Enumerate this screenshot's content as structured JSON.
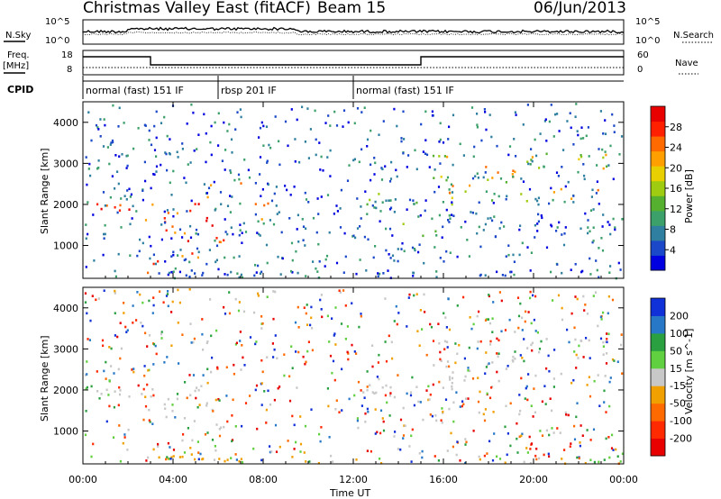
{
  "header": {
    "title": "Christmas Valley East (fitACF)",
    "beam": "Beam 15",
    "date": "06/Jun/2013"
  },
  "noise_panel": {
    "left_label": "N.Sky",
    "right_label": "N.Search",
    "left_ticks": [
      "10^5",
      "10^0"
    ],
    "right_ticks": [
      "10^5",
      "10^0"
    ]
  },
  "freq_panel": {
    "left_label_line1": "Freq.",
    "left_label_line2": "[MHz]",
    "right_label": "Nave",
    "left_ticks": [
      "18",
      "8"
    ],
    "right_ticks": [
      "60",
      "0"
    ]
  },
  "cpid": {
    "label": "CPID",
    "segments": [
      {
        "name": "normal (fast) 151 IF",
        "start_hour": 0.0,
        "end_hour": 6.0
      },
      {
        "name": "rbsp 201 IF",
        "start_hour": 6.0,
        "end_hour": 12.0
      },
      {
        "name": "normal (fast) 151 IF",
        "start_hour": 12.0,
        "end_hour": 24.0
      }
    ]
  },
  "x_axis": {
    "label": "Time UT",
    "ticks": [
      "00:00",
      "04:00",
      "08:00",
      "12:00",
      "16:00",
      "20:00",
      "00:00"
    ]
  },
  "chart_data": [
    {
      "type": "heatmap",
      "ylabel": "Slant Range [km]",
      "y_ticks": [
        "1000",
        "2000",
        "3000",
        "4000"
      ],
      "ylim": [
        200,
        4500
      ],
      "xlim": [
        0,
        24
      ],
      "colorbar": {
        "label": "Power [dB]",
        "ticks": [
          "4",
          "8",
          "12",
          "16",
          "20",
          "24",
          "28"
        ],
        "range": [
          0,
          32
        ],
        "colors": [
          "#0000e0",
          "#1a48c8",
          "#2e7fa0",
          "#3ca06a",
          "#55b030",
          "#9fcc10",
          "#e8d000",
          "#ffa000",
          "#ff6a00",
          "#ff2000",
          "#e80000"
        ]
      }
    },
    {
      "type": "heatmap",
      "ylabel": "Slant Range [km]",
      "y_ticks": [
        "1000",
        "2000",
        "3000",
        "4000"
      ],
      "ylim": [
        200,
        4500
      ],
      "xlim": [
        0,
        24
      ],
      "colorbar": {
        "label": "Velocity [m s^-1]",
        "ticks": [
          "200",
          "100",
          "50",
          "15",
          "-15",
          "-50",
          "-100",
          "-200"
        ],
        "colors": [
          "#1030d8",
          "#2878c8",
          "#2aa040",
          "#60d040",
          "#c8c8c8",
          "#f0a000",
          "#ff6a00",
          "#ff2a00",
          "#e80000"
        ]
      }
    }
  ]
}
